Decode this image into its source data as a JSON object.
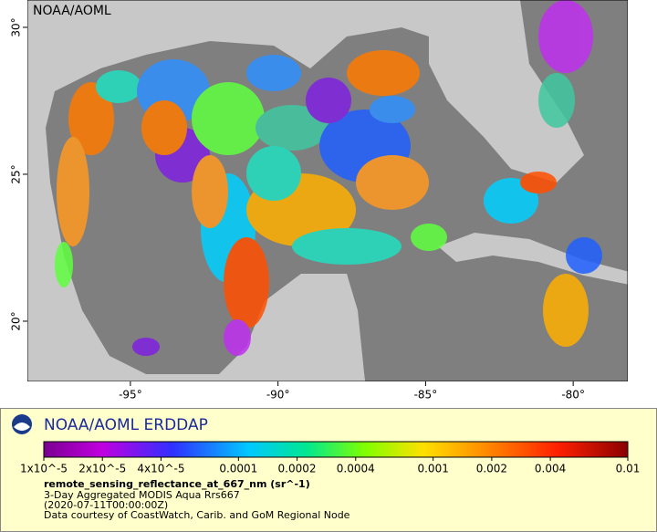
{
  "map": {
    "watermark": "NOAA/AOML",
    "xlim": [
      -98.49,
      -78.15
    ],
    "ylim": [
      17.95,
      30.93
    ],
    "xticks": [
      {
        "value": -95,
        "label": "-95°"
      },
      {
        "value": -90,
        "label": "-90°"
      },
      {
        "value": -85,
        "label": "-85°"
      },
      {
        "value": -80,
        "label": "-80°"
      }
    ],
    "yticks": [
      {
        "value": 20,
        "label": "20°"
      },
      {
        "value": 25,
        "label": "25°"
      },
      {
        "value": 30,
        "label": "30°"
      }
    ]
  },
  "legend": {
    "title": "NOAA/AOML ERDDAP",
    "colorbar": {
      "lim": [
        1e-05,
        0.01
      ],
      "log": true,
      "ticks": [
        {
          "value": 1e-05,
          "label": "1x10^-5"
        },
        {
          "value": 2e-05,
          "label": "2x10^-5"
        },
        {
          "value": 4e-05,
          "label": "4x10^-5"
        },
        0.0001,
        0.0002,
        0.0004,
        0.001,
        0.002,
        0.004,
        0.01
      ]
    },
    "variable": "remote_sensing_reflectance_at_667_nm (sr^-1)",
    "lines": [
      "3-Day Aggregated MODIS Aqua Rrs667",
      "(2020-07-11T00:00:00Z)",
      "Data courtesy of CoastWatch, Carib. and GoM Regional Node"
    ]
  }
}
